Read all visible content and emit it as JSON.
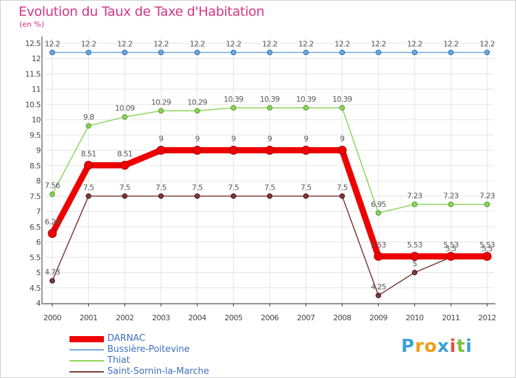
{
  "title": "Evolution du Taux de Taxe d'Habitation",
  "subtitle": "(en %)",
  "logo": {
    "letters": [
      "P",
      "r",
      "o",
      "x",
      "i",
      "t",
      "i"
    ],
    "colors": [
      "#3aa0d8",
      "#f39c12",
      "#f39c12",
      "#3aa0d8",
      "#e74c3c",
      "#7cc242",
      "#3aa0d8"
    ]
  },
  "chart_data": {
    "type": "line",
    "title": "Evolution du Taux de Taxe d'Habitation",
    "ylabel": "(en %)",
    "xlabel": "",
    "x": [
      "2000",
      "2001",
      "2002",
      "2003",
      "2004",
      "2005",
      "2006",
      "2007",
      "2008",
      "2009",
      "2010",
      "2011",
      "2012"
    ],
    "ylim": [
      4,
      12.5
    ],
    "yticks": [
      "4",
      "4.5",
      "5",
      "5.5",
      "6",
      "6.5",
      "7",
      "7.5",
      "8",
      "8.5",
      "9",
      "9.5",
      "10",
      "10.5",
      "11",
      "11.5",
      "12",
      "12.5"
    ],
    "grid": true,
    "legend_position": "bottom-left",
    "series": [
      {
        "name": "DARNAC",
        "color": "#ee0000",
        "values": [
          6.28,
          8.51,
          8.51,
          9,
          9,
          9,
          9,
          9,
          9,
          5.53,
          5.53,
          5.53,
          5.53
        ],
        "labels": [
          "6.28",
          "8.51",
          "8.51",
          "9",
          "9",
          "9",
          "9",
          "9",
          "9",
          "5.53",
          "5.53",
          "5.53",
          "5.53"
        ]
      },
      {
        "name": "Bussière-Poitevine",
        "color": "#6fa8dc",
        "values": [
          12.2,
          12.2,
          12.2,
          12.2,
          12.2,
          12.2,
          12.2,
          12.2,
          12.2,
          12.2,
          12.2,
          12.2,
          12.2
        ],
        "labels": [
          "12.2",
          "12.2",
          "12.2",
          "12.2",
          "12.2",
          "12.2",
          "12.2",
          "12.2",
          "12.2",
          "12.2",
          "12.2",
          "12.2",
          "12.2"
        ]
      },
      {
        "name": "Thiat",
        "color": "#8cd35a",
        "values": [
          7.56,
          9.8,
          10.09,
          10.29,
          10.29,
          10.39,
          10.39,
          10.39,
          10.39,
          6.95,
          7.23,
          7.23,
          7.23
        ],
        "labels": [
          "7.56",
          "9.8",
          "10.09",
          "10.29",
          "10.29",
          "10.39",
          "10.39",
          "10.39",
          "10.39",
          "6.95",
          "7.23",
          "7.23",
          "7.23"
        ]
      },
      {
        "name": "Saint-Sornin-la-Marche",
        "color": "#7a3838",
        "values": [
          4.73,
          7.5,
          7.5,
          7.5,
          7.5,
          7.5,
          7.5,
          7.5,
          7.5,
          4.25,
          5,
          5.5,
          5.5
        ],
        "labels": [
          "4.73",
          "7.5",
          "7.5",
          "7.5",
          "7.5",
          "7.5",
          "7.5",
          "7.5",
          "7.5",
          "4.25",
          "5",
          "5.5",
          "5.5"
        ]
      }
    ]
  }
}
